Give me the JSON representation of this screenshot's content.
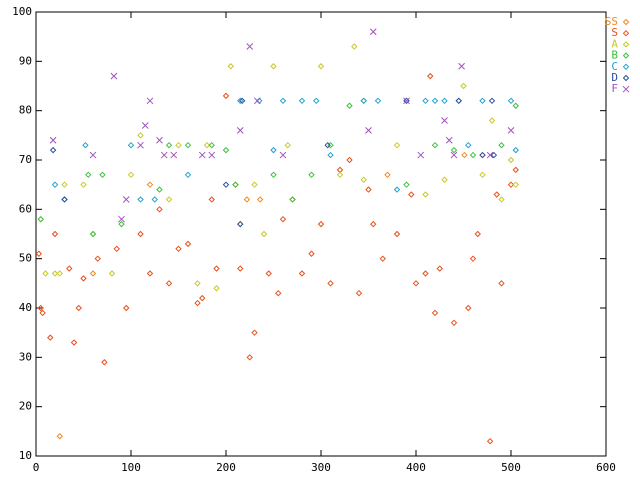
{
  "chart_data": {
    "type": "scatter",
    "xlim": [
      0,
      600
    ],
    "ylim": [
      10,
      100
    ],
    "xticks": [
      0,
      100,
      200,
      300,
      400,
      500,
      600
    ],
    "yticks": [
      10,
      20,
      30,
      40,
      50,
      60,
      70,
      80,
      90,
      100
    ],
    "legend": "top-right",
    "series": [
      {
        "name": "SS",
        "color": "#f08a20",
        "marker": "diamond",
        "x": [
          25,
          222,
          451,
          236,
          370,
          120,
          60,
          470
        ],
        "values": [
          14,
          62,
          71,
          62,
          67,
          65,
          47,
          71
        ]
      },
      {
        "name": "S",
        "color": "#e8501c",
        "marker": "diamond",
        "x": [
          5,
          7,
          15,
          40,
          72,
          230,
          225,
          478,
          415,
          200,
          440,
          95,
          300,
          355,
          410,
          280,
          150,
          20,
          35,
          50,
          65,
          85,
          110,
          130,
          140,
          160,
          175,
          190,
          210,
          245,
          260,
          270,
          290,
          310,
          320,
          340,
          365,
          380,
          395,
          425,
          455,
          465,
          490,
          505,
          3,
          45,
          120,
          185,
          255,
          330,
          400,
          460,
          500,
          215,
          170,
          350,
          420,
          485
        ],
        "values": [
          40,
          39,
          34,
          33,
          29,
          35,
          30,
          13,
          87,
          83,
          37,
          40,
          57,
          57,
          47,
          47,
          52,
          55,
          48,
          46,
          50,
          52,
          55,
          60,
          45,
          53,
          42,
          48,
          65,
          47,
          58,
          62,
          51,
          45,
          68,
          43,
          50,
          55,
          63,
          48,
          40,
          55,
          45,
          68,
          51,
          40,
          47,
          62,
          43,
          70,
          45,
          50,
          65,
          48,
          41,
          64,
          39,
          63
        ]
      },
      {
        "name": "A",
        "color": "#c8c828",
        "marker": "diamond",
        "x": [
          25,
          10,
          20,
          335,
          450,
          205,
          300,
          250,
          5,
          50,
          100,
          150,
          180,
          230,
          265,
          320,
          380,
          430,
          480,
          500,
          505,
          110,
          170,
          190,
          240,
          470,
          60,
          80,
          30,
          140,
          215,
          345,
          410,
          490
        ],
        "values": [
          47,
          47,
          47,
          93,
          85,
          89,
          89,
          89,
          58,
          65,
          67,
          73,
          73,
          65,
          73,
          67,
          73,
          66,
          78,
          70,
          65,
          75,
          45,
          44,
          55,
          67,
          55,
          47,
          65,
          62,
          57,
          66,
          63,
          62
        ]
      },
      {
        "name": "B",
        "color": "#3cc03c",
        "marker": "diamond",
        "x": [
          5,
          55,
          60,
          90,
          130,
          160,
          185,
          210,
          250,
          290,
          310,
          330,
          345,
          390,
          420,
          440,
          460,
          490,
          505,
          70,
          200,
          140,
          270
        ],
        "values": [
          58,
          67,
          55,
          57,
          64,
          73,
          73,
          65,
          67,
          67,
          73,
          81,
          82,
          65,
          73,
          72,
          71,
          73,
          81,
          67,
          72,
          73,
          62
        ]
      },
      {
        "name": "C",
        "color": "#20a0d0",
        "marker": "diamond",
        "x": [
          20,
          30,
          52,
          100,
          110,
          125,
          215,
          235,
          260,
          280,
          295,
          345,
          360,
          390,
          420,
          430,
          445,
          470,
          500,
          160,
          250,
          310,
          380,
          410,
          455,
          505
        ],
        "values": [
          65,
          62,
          73,
          73,
          62,
          62,
          82,
          82,
          82,
          82,
          82,
          82,
          82,
          82,
          82,
          82,
          82,
          82,
          82,
          67,
          72,
          71,
          64,
          82,
          73,
          72
        ]
      },
      {
        "name": "D",
        "color": "#2a4f9a",
        "marker": "diamond",
        "x": [
          18,
          215,
          217,
          307,
          390,
          445,
          470,
          480,
          30,
          482,
          200
        ],
        "values": [
          72,
          57,
          82,
          73,
          82,
          82,
          71,
          82,
          62,
          71,
          65
        ]
      },
      {
        "name": "F",
        "color": "#a050c0",
        "marker": "cross",
        "x": [
          18,
          60,
          82,
          90,
          115,
          120,
          130,
          135,
          145,
          175,
          185,
          215,
          225,
          233,
          260,
          355,
          350,
          390,
          405,
          430,
          435,
          448,
          440,
          478,
          500,
          95,
          110
        ],
        "values": [
          74,
          71,
          87,
          58,
          77,
          82,
          74,
          71,
          71,
          71,
          71,
          76,
          93,
          82,
          71,
          96,
          76,
          82,
          71,
          78,
          74,
          89,
          71,
          71,
          76,
          62,
          73
        ]
      }
    ]
  }
}
